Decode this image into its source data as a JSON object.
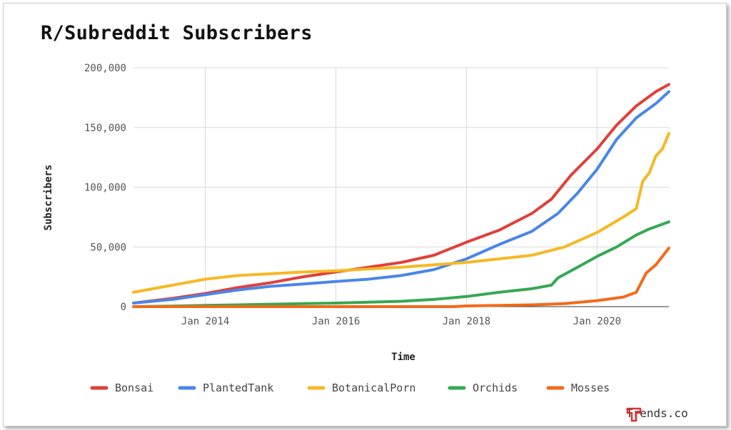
{
  "brand": {
    "name": "Trends.co",
    "logo_color": "#e03030"
  },
  "chart_data": {
    "type": "line",
    "title": "R/Subreddit Subscribers",
    "xlabel": "Time",
    "ylabel": "Subscribers",
    "x_tick_labels": [
      "Jan 2014",
      "Jan 2016",
      "Jan 2018",
      "Jan 2020"
    ],
    "y_tick_labels": [
      "0",
      "50,000",
      "100,000",
      "150,000",
      "200,000"
    ],
    "xlim": [
      2012.9,
      2021.1
    ],
    "ylim": [
      0,
      200000
    ],
    "grid": true,
    "legend_position": "bottom",
    "series": [
      {
        "name": "Bonsai",
        "color": "#e0403a",
        "points": [
          [
            2012.9,
            3000
          ],
          [
            2013.5,
            7000
          ],
          [
            2014.0,
            11000
          ],
          [
            2014.5,
            16000
          ],
          [
            2015.0,
            20000
          ],
          [
            2015.5,
            25000
          ],
          [
            2016.0,
            29000
          ],
          [
            2016.5,
            33000
          ],
          [
            2017.0,
            37000
          ],
          [
            2017.5,
            43000
          ],
          [
            2018.0,
            54000
          ],
          [
            2018.5,
            64000
          ],
          [
            2019.0,
            78000
          ],
          [
            2019.3,
            90000
          ],
          [
            2019.6,
            110000
          ],
          [
            2020.0,
            132000
          ],
          [
            2020.3,
            152000
          ],
          [
            2020.6,
            168000
          ],
          [
            2020.9,
            180000
          ],
          [
            2021.1,
            186000
          ]
        ]
      },
      {
        "name": "PlantedTank",
        "color": "#4a86e8",
        "points": [
          [
            2012.9,
            3000
          ],
          [
            2013.5,
            6000
          ],
          [
            2014.0,
            10000
          ],
          [
            2014.5,
            14000
          ],
          [
            2015.0,
            17000
          ],
          [
            2015.5,
            19000
          ],
          [
            2016.0,
            21000
          ],
          [
            2016.5,
            23000
          ],
          [
            2017.0,
            26000
          ],
          [
            2017.5,
            31000
          ],
          [
            2018.0,
            40000
          ],
          [
            2018.5,
            52000
          ],
          [
            2019.0,
            63000
          ],
          [
            2019.4,
            78000
          ],
          [
            2019.7,
            95000
          ],
          [
            2020.0,
            115000
          ],
          [
            2020.3,
            140000
          ],
          [
            2020.6,
            158000
          ],
          [
            2020.9,
            170000
          ],
          [
            2021.1,
            180000
          ]
        ]
      },
      {
        "name": "BotanicalPorn",
        "color": "#f6b823",
        "points": [
          [
            2012.9,
            12000
          ],
          [
            2013.5,
            18000
          ],
          [
            2014.0,
            23000
          ],
          [
            2014.5,
            26000
          ],
          [
            2015.0,
            27500
          ],
          [
            2015.5,
            29000
          ],
          [
            2016.0,
            30000
          ],
          [
            2016.5,
            31500
          ],
          [
            2017.0,
            33000
          ],
          [
            2017.5,
            35000
          ],
          [
            2018.0,
            37000
          ],
          [
            2018.5,
            40000
          ],
          [
            2019.0,
            43000
          ],
          [
            2019.5,
            50000
          ],
          [
            2020.0,
            62000
          ],
          [
            2020.4,
            75000
          ],
          [
            2020.6,
            82000
          ],
          [
            2020.7,
            105000
          ],
          [
            2020.8,
            112000
          ],
          [
            2020.9,
            126000
          ],
          [
            2021.0,
            132000
          ],
          [
            2021.1,
            145000
          ]
        ]
      },
      {
        "name": "Orchids",
        "color": "#36a853",
        "points": [
          [
            2012.9,
            0
          ],
          [
            2013.5,
            500
          ],
          [
            2014.0,
            1000
          ],
          [
            2014.5,
            1500
          ],
          [
            2015.0,
            2000
          ],
          [
            2015.5,
            2500
          ],
          [
            2016.0,
            3000
          ],
          [
            2016.5,
            3700
          ],
          [
            2017.0,
            4500
          ],
          [
            2017.5,
            6000
          ],
          [
            2018.0,
            8500
          ],
          [
            2018.5,
            12000
          ],
          [
            2019.0,
            15000
          ],
          [
            2019.3,
            18000
          ],
          [
            2019.4,
            24000
          ],
          [
            2019.7,
            33000
          ],
          [
            2020.0,
            42000
          ],
          [
            2020.3,
            50000
          ],
          [
            2020.6,
            60000
          ],
          [
            2020.8,
            65000
          ],
          [
            2021.1,
            71000
          ]
        ]
      },
      {
        "name": "Mosses",
        "color": "#f26a1b",
        "points": [
          [
            2012.9,
            0
          ],
          [
            2014.0,
            0
          ],
          [
            2016.0,
            0
          ],
          [
            2017.8,
            0
          ],
          [
            2018.0,
            600
          ],
          [
            2018.5,
            1000
          ],
          [
            2019.0,
            1500
          ],
          [
            2019.5,
            2500
          ],
          [
            2020.0,
            5000
          ],
          [
            2020.4,
            8000
          ],
          [
            2020.6,
            12000
          ],
          [
            2020.75,
            28000
          ],
          [
            2020.9,
            35000
          ],
          [
            2021.1,
            49000
          ]
        ]
      }
    ]
  }
}
